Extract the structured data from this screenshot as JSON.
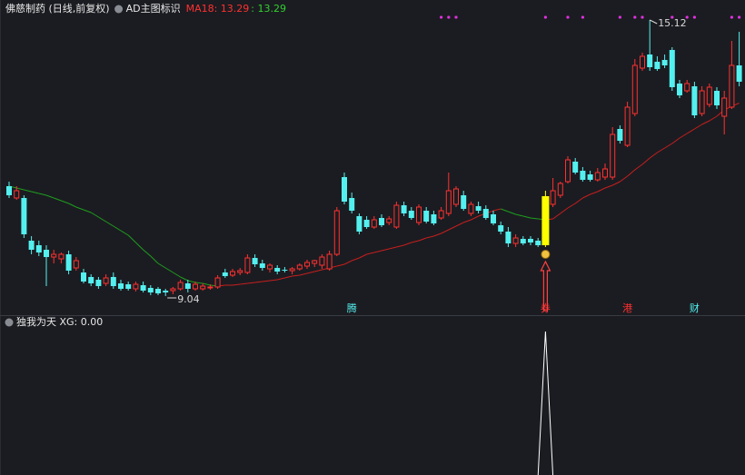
{
  "chart_data": [
    {
      "type": "candlestick",
      "title": "佛慈制药 (日线,前复权)",
      "indicator": "AD主图标识",
      "ma_legend": [
        "MA18: 13.29",
        ": 13.29"
      ],
      "ylim": [
        8.66,
        15.56
      ],
      "up_color": "#ff3030",
      "down_color": "#54f0f0",
      "highlight_index": 72,
      "highlight_color": "#ffff00",
      "ma_up_color": "#c81e1e",
      "ma_down_color": "#1e9e1e",
      "dot_color": "#e030e0",
      "low_mark_index": 21,
      "high_mark_index": 86,
      "candles": [
        [
          11.46,
          11.56,
          11.2,
          11.26
        ],
        [
          11.2,
          11.46,
          11.16,
          11.36
        ],
        [
          11.2,
          11.26,
          10.32,
          10.4
        ],
        [
          10.26,
          10.36,
          9.96,
          10.06
        ],
        [
          10.16,
          10.26,
          9.92,
          10.0
        ],
        [
          10.06,
          10.16,
          9.26,
          9.9
        ],
        [
          9.9,
          10.06,
          9.76,
          9.96
        ],
        [
          9.86,
          10.0,
          9.76,
          9.96
        ],
        [
          9.96,
          10.04,
          9.52,
          9.6
        ],
        [
          9.66,
          9.9,
          9.6,
          9.82
        ],
        [
          9.56,
          9.64,
          9.32,
          9.36
        ],
        [
          9.46,
          9.52,
          9.26,
          9.32
        ],
        [
          9.4,
          9.46,
          9.2,
          9.26
        ],
        [
          9.32,
          9.52,
          9.26,
          9.44
        ],
        [
          9.46,
          9.56,
          9.2,
          9.26
        ],
        [
          9.32,
          9.4,
          9.16,
          9.2
        ],
        [
          9.3,
          9.36,
          9.16,
          9.2
        ],
        [
          9.2,
          9.36,
          9.14,
          9.3
        ],
        [
          9.28,
          9.36,
          9.12,
          9.16
        ],
        [
          9.22,
          9.28,
          9.06,
          9.12
        ],
        [
          9.2,
          9.24,
          9.06,
          9.1
        ],
        [
          9.16,
          9.2,
          9.04,
          9.12
        ],
        [
          9.16,
          9.24,
          9.08,
          9.2
        ],
        [
          9.2,
          9.4,
          9.16,
          9.34
        ],
        [
          9.32,
          9.4,
          9.12,
          9.2
        ],
        [
          9.2,
          9.36,
          9.16,
          9.3
        ],
        [
          9.2,
          9.32,
          9.16,
          9.26
        ],
        [
          9.22,
          9.3,
          9.18,
          9.24
        ],
        [
          9.24,
          9.5,
          9.2,
          9.44
        ],
        [
          9.56,
          9.64,
          9.44,
          9.48
        ],
        [
          9.5,
          9.64,
          9.46,
          9.58
        ],
        [
          9.56,
          9.66,
          9.5,
          9.6
        ],
        [
          9.56,
          9.96,
          9.52,
          9.88
        ],
        [
          9.88,
          9.96,
          9.68,
          9.74
        ],
        [
          9.76,
          9.84,
          9.6,
          9.66
        ],
        [
          9.64,
          9.76,
          9.56,
          9.72
        ],
        [
          9.66,
          9.72,
          9.52,
          9.58
        ],
        [
          9.62,
          9.68,
          9.56,
          9.6
        ],
        [
          9.6,
          9.68,
          9.52,
          9.64
        ],
        [
          9.64,
          9.76,
          9.6,
          9.72
        ],
        [
          9.7,
          9.84,
          9.64,
          9.78
        ],
        [
          9.76,
          9.84,
          9.68,
          9.82
        ],
        [
          9.72,
          9.96,
          9.64,
          9.9
        ],
        [
          9.64,
          10.04,
          9.6,
          9.96
        ],
        [
          9.96,
          11.0,
          9.92,
          10.92
        ],
        [
          11.66,
          11.76,
          11.06,
          11.12
        ],
        [
          11.2,
          11.32,
          10.86,
          10.92
        ],
        [
          10.8,
          10.86,
          10.4,
          10.46
        ],
        [
          10.72,
          10.8,
          10.52,
          10.56
        ],
        [
          10.56,
          10.8,
          10.52,
          10.72
        ],
        [
          10.76,
          10.84,
          10.56,
          10.6
        ],
        [
          10.66,
          10.8,
          10.6,
          10.74
        ],
        [
          10.56,
          11.12,
          10.52,
          11.04
        ],
        [
          11.04,
          11.12,
          10.8,
          10.86
        ],
        [
          10.92,
          11.0,
          10.72,
          10.76
        ],
        [
          10.66,
          11.06,
          10.6,
          11.0
        ],
        [
          10.92,
          11.0,
          10.64,
          10.68
        ],
        [
          10.84,
          10.92,
          10.6,
          10.64
        ],
        [
          10.76,
          11.0,
          10.72,
          10.92
        ],
        [
          10.86,
          11.76,
          10.8,
          11.36
        ],
        [
          11.06,
          11.46,
          11.0,
          11.4
        ],
        [
          11.26,
          11.36,
          10.92,
          10.96
        ],
        [
          10.86,
          11.12,
          10.8,
          11.06
        ],
        [
          11.02,
          11.12,
          10.86,
          10.92
        ],
        [
          10.96,
          11.04,
          10.72,
          10.76
        ],
        [
          10.84,
          10.92,
          10.6,
          10.64
        ],
        [
          10.6,
          10.68,
          10.4,
          10.46
        ],
        [
          10.46,
          10.56,
          10.12,
          10.2
        ],
        [
          10.2,
          10.4,
          10.12,
          10.32
        ],
        [
          10.3,
          10.36,
          10.16,
          10.2
        ],
        [
          10.3,
          10.36,
          10.16,
          10.22
        ],
        [
          10.26,
          10.32,
          10.12,
          10.16
        ],
        [
          10.16,
          11.36,
          10.12,
          11.24
        ],
        [
          11.06,
          11.64,
          11.0,
          11.36
        ],
        [
          11.26,
          11.56,
          11.2,
          11.52
        ],
        [
          11.56,
          12.12,
          11.52,
          12.04
        ],
        [
          12.0,
          12.08,
          11.72,
          11.76
        ],
        [
          11.8,
          11.88,
          11.56,
          11.6
        ],
        [
          11.72,
          11.8,
          11.56,
          11.6
        ],
        [
          11.6,
          11.86,
          11.56,
          11.76
        ],
        [
          11.66,
          11.96,
          11.6,
          11.84
        ],
        [
          11.66,
          12.76,
          11.6,
          12.6
        ],
        [
          12.72,
          12.8,
          12.4,
          12.46
        ],
        [
          12.36,
          13.32,
          12.32,
          13.2
        ],
        [
          13.06,
          14.26,
          13.0,
          14.12
        ],
        [
          14.06,
          14.4,
          14.0,
          14.32
        ],
        [
          14.36,
          15.12,
          14.0,
          14.08
        ],
        [
          14.2,
          14.32,
          14.0,
          14.04
        ],
        [
          14.24,
          14.36,
          14.06,
          14.12
        ],
        [
          14.46,
          14.52,
          13.56,
          13.64
        ],
        [
          13.72,
          13.8,
          13.4,
          13.46
        ],
        [
          13.56,
          13.8,
          13.52,
          13.72
        ],
        [
          13.66,
          13.76,
          12.96,
          13.02
        ],
        [
          13.06,
          13.66,
          13.0,
          13.56
        ],
        [
          13.26,
          13.72,
          13.2,
          13.64
        ],
        [
          13.56,
          13.64,
          13.16,
          13.24
        ],
        [
          13.0,
          13.56,
          12.6,
          13.4
        ],
        [
          13.2,
          14.66,
          13.16,
          14.12
        ],
        [
          14.12,
          14.86,
          13.66,
          13.76
        ]
      ],
      "ma": [
        11.46,
        11.42,
        11.38,
        11.34,
        11.3,
        11.26,
        11.2,
        11.14,
        11.08,
        11.0,
        10.94,
        10.88,
        10.78,
        10.68,
        10.58,
        10.48,
        10.38,
        10.22,
        10.06,
        9.92,
        9.76,
        9.66,
        9.56,
        9.46,
        9.38,
        9.34,
        9.32,
        9.28,
        9.26,
        9.28,
        9.28,
        9.3,
        9.32,
        9.34,
        9.36,
        9.38,
        9.4,
        9.44,
        9.48,
        9.5,
        9.54,
        9.58,
        9.62,
        9.66,
        9.7,
        9.74,
        9.82,
        9.88,
        9.96,
        10.0,
        10.04,
        10.08,
        10.12,
        10.16,
        10.22,
        10.26,
        10.32,
        10.36,
        10.42,
        10.5,
        10.58,
        10.66,
        10.72,
        10.8,
        10.86,
        10.92,
        10.96,
        10.9,
        10.84,
        10.8,
        10.76,
        10.74,
        10.72,
        10.74,
        10.86,
        10.98,
        11.08,
        11.2,
        11.28,
        11.34,
        11.42,
        11.48,
        11.56,
        11.68,
        11.82,
        11.94,
        12.08,
        12.2,
        12.3,
        12.4,
        12.52,
        12.62,
        12.72,
        12.82,
        12.9,
        13.0,
        13.14,
        13.22,
        13.29
      ],
      "dots": [
        58,
        59,
        60,
        72,
        75,
        77,
        82,
        84,
        85,
        89,
        91,
        92,
        97,
        98
      ],
      "events": [
        {
          "index": 46,
          "text": "腾",
          "color": "#54f0f0"
        },
        {
          "index": 72,
          "text": "券",
          "color": "#ff3030"
        },
        {
          "index": 83,
          "text": "港",
          "color": "#ff3030"
        },
        {
          "index": 92,
          "text": "财",
          "color": "#54f0f0"
        }
      ]
    },
    {
      "type": "line",
      "title": "独我为天 XG: 0.00",
      "color": "#ffffff",
      "ylim": [
        0,
        1
      ],
      "values": [
        0,
        0,
        0,
        0,
        0,
        0,
        0,
        0,
        0,
        0,
        0,
        0,
        0,
        0,
        0,
        0,
        0,
        0,
        0,
        0,
        0,
        0,
        0,
        0,
        0,
        0,
        0,
        0,
        0,
        0,
        0,
        0,
        0,
        0,
        0,
        0,
        0,
        0,
        0,
        0,
        0,
        0,
        0,
        0,
        0,
        0,
        0,
        0,
        0,
        0,
        0,
        0,
        0,
        0,
        0,
        0,
        0,
        0,
        0,
        0,
        0,
        0,
        0,
        0,
        0,
        0,
        0,
        0,
        0,
        0,
        0,
        0,
        1,
        0,
        0,
        0,
        0,
        0,
        0,
        0,
        0,
        0,
        0,
        0,
        0,
        0,
        0,
        0,
        0,
        0,
        0,
        0,
        0,
        0,
        0,
        0,
        0,
        0,
        0
      ]
    }
  ]
}
